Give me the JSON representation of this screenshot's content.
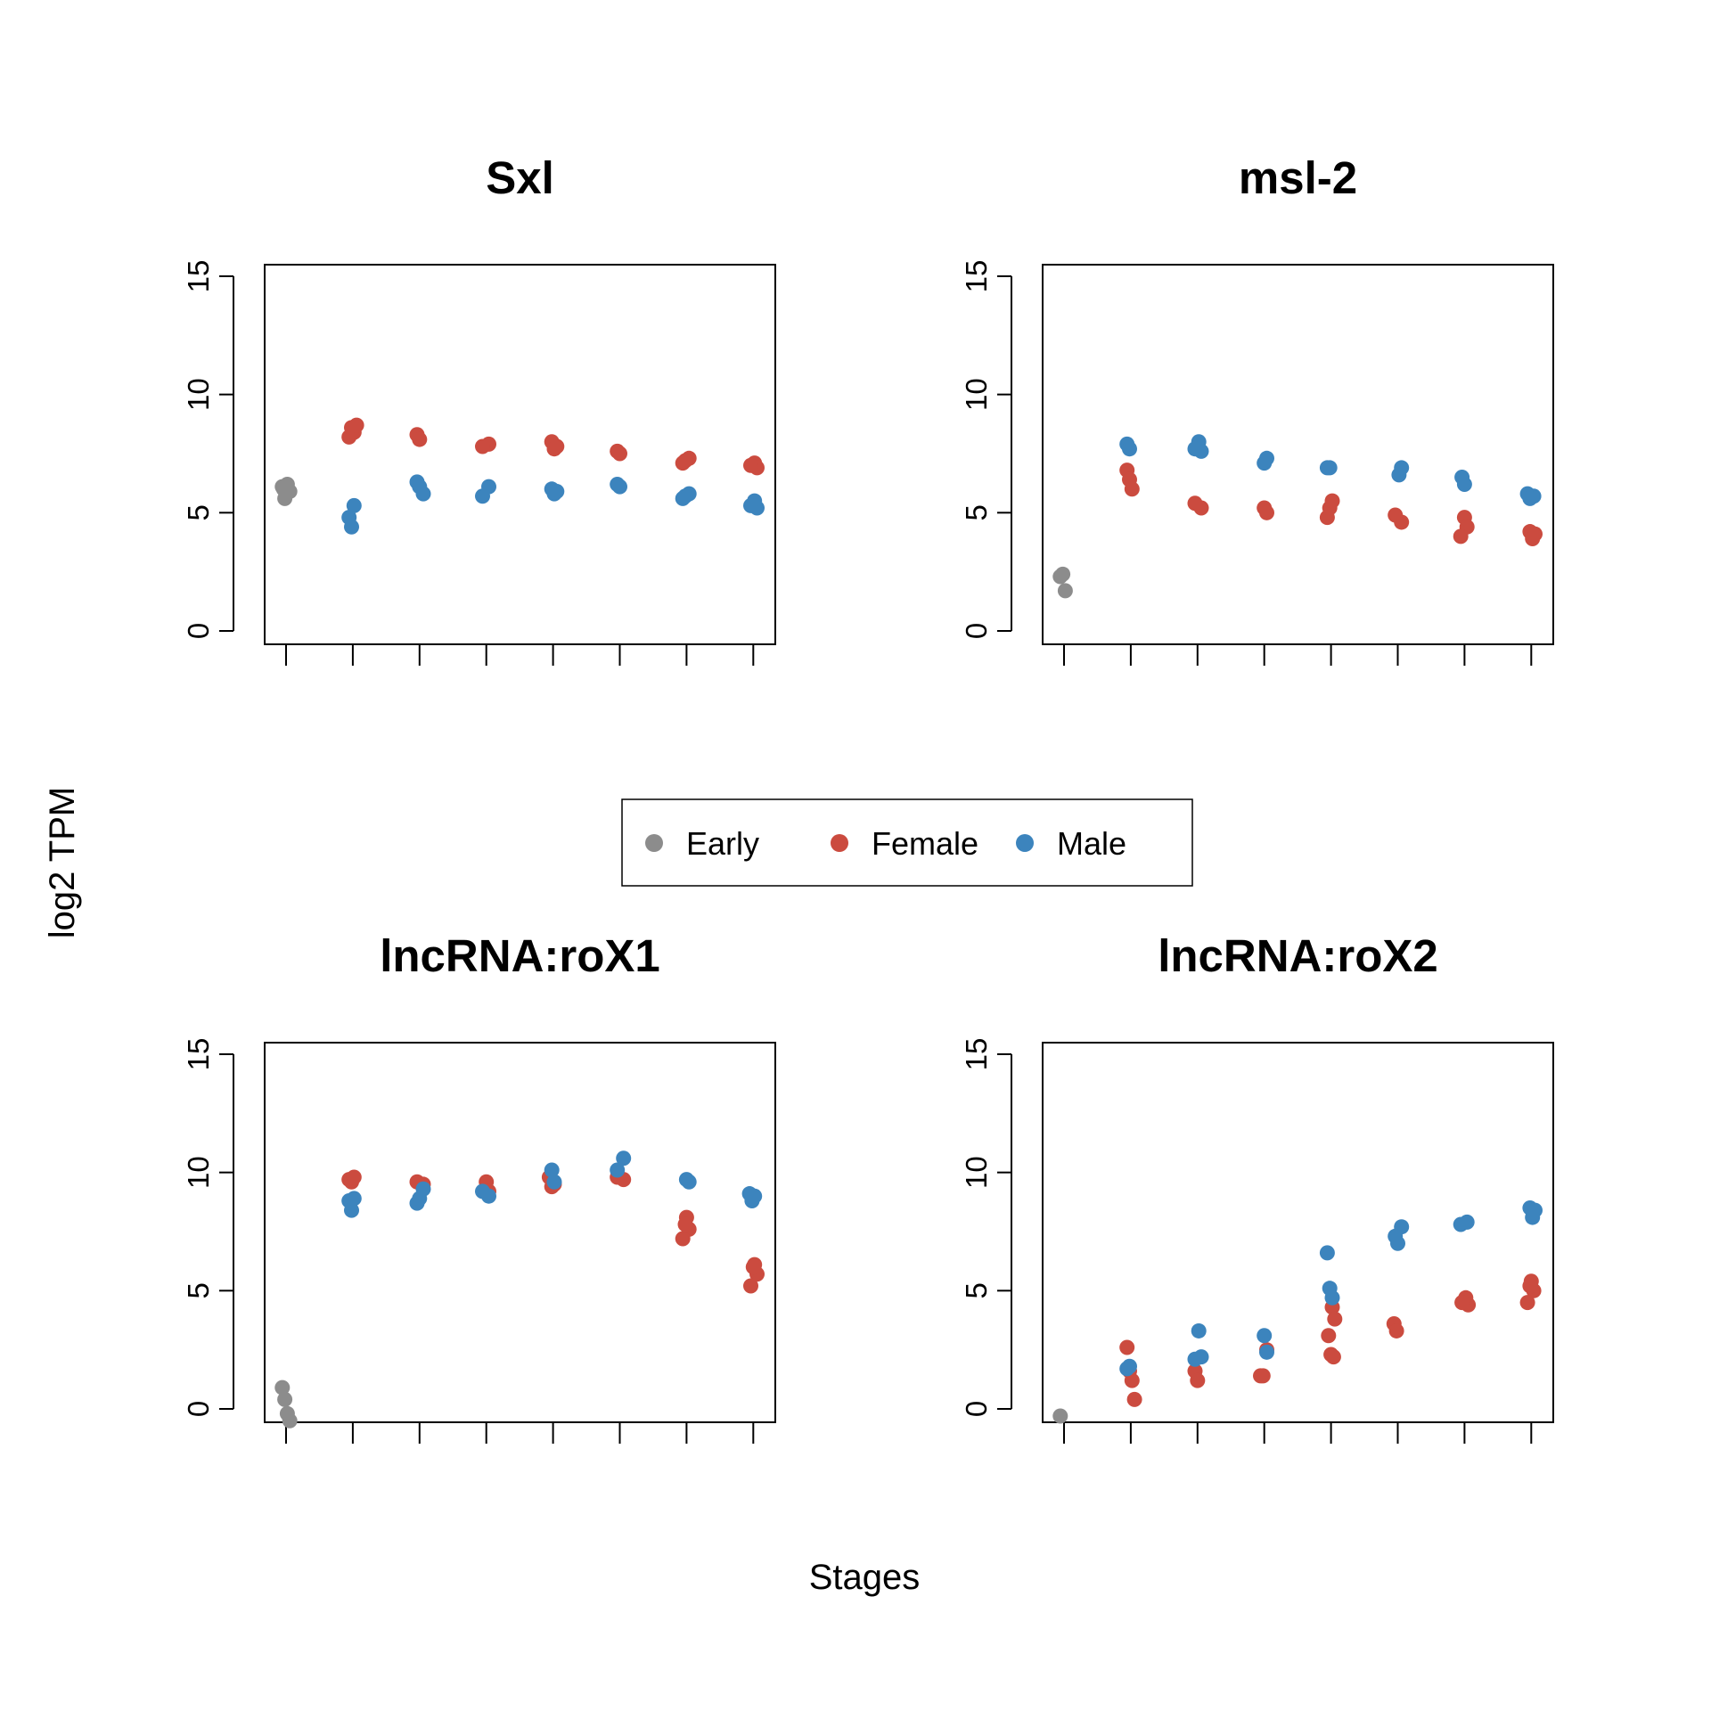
{
  "figure": {
    "ylabel": "log2 TPM",
    "xlabel": "Stages"
  },
  "legend": {
    "items": [
      {
        "label": "Early",
        "color": "#8C8C8C"
      },
      {
        "label": "Female",
        "color": "#CB4B3F"
      },
      {
        "label": "Male",
        "color": "#3C84BD"
      }
    ]
  },
  "colors": {
    "Early": "#8C8C8C",
    "Female": "#CB4B3F",
    "Male": "#3C84BD"
  },
  "chart_data": [
    {
      "type": "scatter",
      "title": "Sxl",
      "ylim": [
        0,
        15
      ],
      "yticks": [
        0,
        5,
        10,
        15
      ],
      "x_positions": 8,
      "series": [
        {
          "name": "Early",
          "points": [
            [
              1,
              6.1
            ],
            [
              1,
              5.6
            ],
            [
              1,
              6.2
            ],
            [
              1,
              5.9
            ],
            [
              1,
              6.0
            ]
          ]
        },
        {
          "name": "Female",
          "points": [
            [
              2,
              8.2
            ],
            [
              2,
              8.6
            ],
            [
              2,
              8.4
            ],
            [
              2,
              8.7
            ],
            [
              3,
              8.3
            ],
            [
              3,
              8.1
            ],
            [
              4,
              7.9
            ],
            [
              4,
              7.8
            ],
            [
              5,
              8.0
            ],
            [
              5,
              7.7
            ],
            [
              5,
              7.8
            ],
            [
              6,
              7.6
            ],
            [
              6,
              7.5
            ],
            [
              7,
              7.3
            ],
            [
              7,
              7.1
            ],
            [
              7,
              7.2
            ],
            [
              8,
              7.1
            ],
            [
              8,
              6.9
            ],
            [
              8,
              7.0
            ]
          ]
        },
        {
          "name": "Male",
          "points": [
            [
              2,
              4.8
            ],
            [
              2,
              4.4
            ],
            [
              2,
              5.3
            ],
            [
              3,
              5.8
            ],
            [
              3,
              6.3
            ],
            [
              3,
              6.1
            ],
            [
              4,
              6.1
            ],
            [
              4,
              5.7
            ],
            [
              5,
              6.0
            ],
            [
              5,
              5.8
            ],
            [
              5,
              5.9
            ],
            [
              6,
              6.2
            ],
            [
              6,
              6.1
            ],
            [
              7,
              5.8
            ],
            [
              7,
              5.6
            ],
            [
              7,
              5.7
            ],
            [
              8,
              5.5
            ],
            [
              8,
              5.2
            ],
            [
              8,
              5.3
            ]
          ]
        }
      ]
    },
    {
      "type": "scatter",
      "title": "msl-2",
      "ylim": [
        0,
        15
      ],
      "yticks": [
        0,
        5,
        10,
        15
      ],
      "x_positions": 8,
      "series": [
        {
          "name": "Early",
          "points": [
            [
              1,
              2.3
            ],
            [
              1,
              2.4
            ],
            [
              1,
              1.7
            ]
          ]
        },
        {
          "name": "Female",
          "points": [
            [
              2,
              6.8
            ],
            [
              2,
              6.4
            ],
            [
              2,
              6.0
            ],
            [
              3,
              5.2
            ],
            [
              3,
              5.4
            ],
            [
              4,
              5.2
            ],
            [
              4,
              5.0
            ],
            [
              5,
              4.8
            ],
            [
              5,
              5.2
            ],
            [
              5,
              5.5
            ],
            [
              6,
              4.6
            ],
            [
              6,
              4.9
            ],
            [
              7,
              4.8
            ],
            [
              7,
              4.4
            ],
            [
              7,
              4.0
            ],
            [
              8,
              4.2
            ],
            [
              8,
              3.9
            ],
            [
              8,
              4.1
            ]
          ]
        },
        {
          "name": "Male",
          "points": [
            [
              2,
              7.9
            ],
            [
              2,
              7.7
            ],
            [
              3,
              8.0
            ],
            [
              3,
              7.6
            ],
            [
              3,
              7.7
            ],
            [
              4,
              7.1
            ],
            [
              4,
              7.3
            ],
            [
              5,
              6.9
            ],
            [
              5,
              6.9
            ],
            [
              6,
              6.6
            ],
            [
              6,
              6.9
            ],
            [
              7,
              6.5
            ],
            [
              7,
              6.2
            ],
            [
              8,
              5.7
            ],
            [
              8,
              5.8
            ],
            [
              8,
              5.6
            ]
          ]
        }
      ]
    },
    {
      "type": "scatter",
      "title": "lncRNA:roX1",
      "ylim": [
        0,
        15
      ],
      "yticks": [
        0,
        5,
        10,
        15
      ],
      "x_positions": 8,
      "series": [
        {
          "name": "Early",
          "points": [
            [
              1,
              0.9
            ],
            [
              1,
              0.4
            ],
            [
              1,
              -0.2
            ],
            [
              1,
              -0.5
            ]
          ]
        },
        {
          "name": "Female",
          "points": [
            [
              2,
              9.7
            ],
            [
              2,
              9.6
            ],
            [
              2,
              9.8
            ],
            [
              3,
              9.5
            ],
            [
              3,
              9.6
            ],
            [
              4,
              9.6
            ],
            [
              4,
              9.2
            ],
            [
              5,
              9.8
            ],
            [
              5,
              9.4
            ],
            [
              5,
              9.5
            ],
            [
              6,
              9.7
            ],
            [
              6,
              9.8
            ],
            [
              7,
              8.1
            ],
            [
              7,
              7.6
            ],
            [
              7,
              7.2
            ],
            [
              7,
              7.8
            ],
            [
              8,
              6.1
            ],
            [
              8,
              5.7
            ],
            [
              8,
              5.2
            ],
            [
              8,
              6.0
            ]
          ]
        },
        {
          "name": "Male",
          "points": [
            [
              2,
              8.8
            ],
            [
              2,
              8.4
            ],
            [
              2,
              8.9
            ],
            [
              3,
              9.3
            ],
            [
              3,
              8.7
            ],
            [
              3,
              8.9
            ],
            [
              4,
              9.0
            ],
            [
              4,
              9.2
            ],
            [
              5,
              10.1
            ],
            [
              5,
              9.6
            ],
            [
              6,
              10.6
            ],
            [
              6,
              10.1
            ],
            [
              7,
              9.7
            ],
            [
              7,
              9.6
            ],
            [
              8,
              9.1
            ],
            [
              8,
              8.8
            ],
            [
              8,
              9.0
            ]
          ]
        }
      ]
    },
    {
      "type": "scatter",
      "title": "lncRNA:roX2",
      "ylim": [
        0,
        15
      ],
      "yticks": [
        0,
        5,
        10,
        15
      ],
      "x_positions": 8,
      "series": [
        {
          "name": "Early",
          "points": [
            [
              1,
              -0.3
            ]
          ]
        },
        {
          "name": "Female",
          "points": [
            [
              2,
              2.6
            ],
            [
              2,
              1.6
            ],
            [
              2,
              1.2
            ],
            [
              2,
              0.4
            ],
            [
              3,
              1.6
            ],
            [
              3,
              1.2
            ],
            [
              4,
              2.5
            ],
            [
              4,
              1.4
            ],
            [
              4,
              1.4
            ],
            [
              5,
              4.3
            ],
            [
              5,
              3.8
            ],
            [
              5,
              3.1
            ],
            [
              5,
              2.3
            ],
            [
              5,
              2.2
            ],
            [
              6,
              3.6
            ],
            [
              6,
              3.3
            ],
            [
              7,
              4.7
            ],
            [
              7,
              4.4
            ],
            [
              7,
              4.5
            ],
            [
              8,
              5.4
            ],
            [
              8,
              5.0
            ],
            [
              8,
              4.5
            ],
            [
              8,
              5.2
            ]
          ]
        },
        {
          "name": "Male",
          "points": [
            [
              2,
              1.7
            ],
            [
              2,
              1.8
            ],
            [
              3,
              3.3
            ],
            [
              3,
              2.2
            ],
            [
              3,
              2.1
            ],
            [
              4,
              3.1
            ],
            [
              4,
              2.4
            ],
            [
              5,
              6.6
            ],
            [
              5,
              5.1
            ],
            [
              5,
              4.7
            ],
            [
              6,
              7.7
            ],
            [
              6,
              7.3
            ],
            [
              6,
              7.0
            ],
            [
              7,
              7.9
            ],
            [
              7,
              7.8
            ],
            [
              8,
              8.5
            ],
            [
              8,
              8.1
            ],
            [
              8,
              8.4
            ]
          ]
        }
      ]
    }
  ]
}
